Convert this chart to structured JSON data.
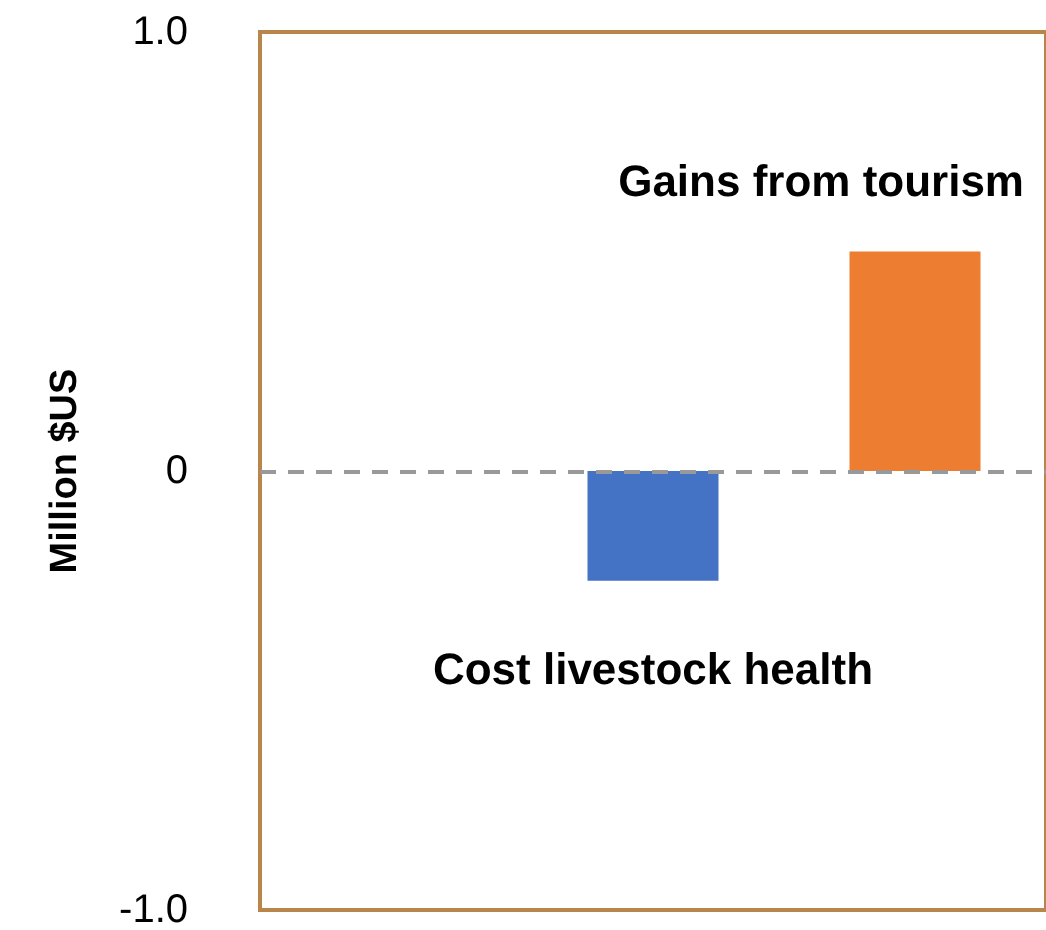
{
  "chart_data": {
    "type": "bar",
    "ylabel": "Million $US",
    "categories": [
      null,
      null,
      null
    ],
    "values": [
      null,
      -0.25,
      0.5
    ],
    "colors": [
      "#4472c4",
      "#4472c4",
      "#ed7d31"
    ],
    "ylim": [
      -1,
      1
    ],
    "yticks": [
      {
        "value": -1,
        "label": "-1.0"
      },
      0,
      {
        "value": 1,
        "label": "1.0"
      }
    ],
    "ref_lines": [
      {
        "axis": "y",
        "value": 0,
        "color": "#999999",
        "line_style": "dashed"
      }
    ],
    "annotations": [
      "Gains from tourism",
      "Cost livestock health"
    ],
    "grid": false
  }
}
